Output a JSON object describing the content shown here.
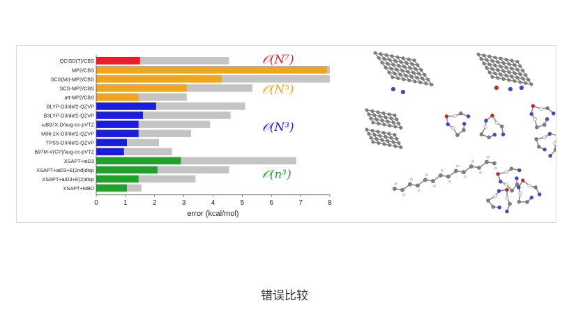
{
  "caption": "错误比较",
  "colors": {
    "red": "#ee1c25",
    "orange": "#f0a51e",
    "blue": "#1a1de0",
    "green": "#22a12a",
    "gray": "#c4c4c4"
  },
  "chart_data": {
    "type": "bar",
    "orientation": "horizontal",
    "xlabel": "error (kcal/mol)",
    "xlim": [
      0,
      8
    ],
    "xticks": [
      0,
      1,
      2,
      3,
      4,
      5,
      6,
      7,
      8
    ],
    "grid": false,
    "categories": [
      "QCISD(T)/CBS",
      "MP2/CBS",
      "SCS(MI)-MP2/CBS",
      "SCS-MP2/CBS",
      "att-MP2/CBS",
      "BLYP-D3/def2-QZVP",
      "B3LYP-D3/def2-QZVP",
      "ωB97X-D/aug-cc-pVTZ",
      "M06-2X-D3/def2-QZVP",
      "TPSS-D3/def2-QZVP",
      "B97M-V(CP)/aug-cc-pVTZ",
      "XSAPT+aiD3",
      "XSAPT+aiD3+E(2nd)disp",
      "XSAPT+aiD3+E(2)disp",
      "XSAPT+MBD"
    ],
    "series": [
      {
        "colored_values": [
          1.5,
          7.9,
          4.3,
          3.1,
          1.45,
          2.05,
          1.6,
          1.45,
          1.45,
          1.05,
          0.95,
          2.9,
          2.1,
          1.45,
          1.05
        ],
        "gray_values": [
          4.55,
          8.0,
          8.0,
          5.35,
          3.1,
          5.1,
          4.6,
          3.9,
          3.25,
          2.15,
          2.6,
          6.85,
          4.55,
          3.4,
          1.55
        ]
      }
    ],
    "groups": [
      {
        "label": "𝒪(N⁷)",
        "color": "red",
        "rows": [
          0
        ]
      },
      {
        "label": "𝒪(N⁵)",
        "color": "orange",
        "rows": [
          1,
          2,
          3,
          4
        ]
      },
      {
        "label": "𝒪(N³)",
        "color": "blue",
        "rows": [
          5,
          6,
          7,
          8,
          9,
          10
        ]
      },
      {
        "label": "𝒪(n³)",
        "color": "green",
        "rows": [
          11,
          12,
          13,
          14
        ]
      }
    ]
  }
}
